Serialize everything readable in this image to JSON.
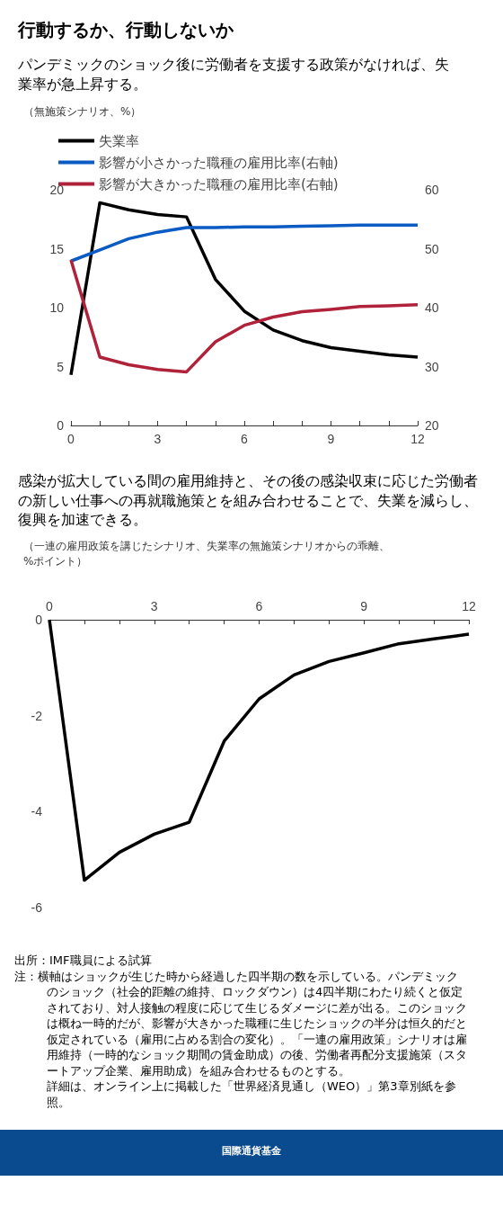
{
  "chart_data": [
    {
      "type": "line",
      "title": "行動するか、行動しないか",
      "subtitle": "パンデミックのショック後に労働者を支援する政策がなければ、失業率が急上昇する。",
      "ylabel": "（無施策シナリオ、%）",
      "x": [
        0,
        1,
        2,
        3,
        4,
        5,
        6,
        7,
        8,
        9,
        10,
        11,
        12
      ],
      "series": [
        {
          "name": "失業率",
          "color": "#000000",
          "values": [
            4.3,
            18.9,
            18.3,
            17.9,
            17.7,
            12.4,
            9.7,
            8.1,
            7.2,
            6.6,
            6.3,
            6.0,
            5.8
          ]
        },
        {
          "name": "影響が小さかった職種の雇用比率(右軸)",
          "color": "#0a5bc4",
          "axis": "y2",
          "values": [
            47.9,
            49.8,
            51.7,
            52.8,
            53.6,
            53.6,
            53.7,
            53.7,
            53.8,
            53.9,
            54.0,
            54.0,
            54.0
          ]
        },
        {
          "name": "影響が大きかった職種の雇用比率(右軸)",
          "color": "#b0213a",
          "axis": "y2",
          "values": [
            48.1,
            31.6,
            30.3,
            29.5,
            29.1,
            34.2,
            37.0,
            38.4,
            39.3,
            39.7,
            40.2,
            40.3,
            40.5
          ]
        }
      ],
      "xlim": [
        0,
        12
      ],
      "xticks": [
        0,
        {
          "value": 1,
          "label": null
        },
        {
          "value": 2,
          "label": null
        },
        3,
        {
          "value": 4,
          "label": null
        },
        {
          "value": 5,
          "label": null
        },
        6,
        {
          "value": 7,
          "label": null
        },
        {
          "value": 8,
          "label": null
        },
        9,
        {
          "value": 10,
          "label": null
        },
        {
          "value": 11,
          "label": null
        },
        12
      ],
      "ylim": [
        0,
        20
      ],
      "yticks": [
        0,
        5,
        10,
        15,
        20
      ],
      "y2lim": [
        20,
        60
      ],
      "y2ticks": [
        20,
        30,
        40,
        50,
        60
      ],
      "legend": "top left",
      "grid": false,
      "marker": "none",
      "line_style": "solid"
    },
    {
      "type": "line",
      "title": "感染が拡大している間の雇用維持と、その後の感染収束に応じた労働者の新しい仕事への再就職施策とを組み合わせることで、失業を減らし、復興を加速できる。",
      "ylabel": "（一連の雇用政策を講じたシナリオ、失業率の無施策シナリオからの乖離、\n%ポイント）",
      "x": [
        0,
        1,
        2,
        3,
        4,
        5,
        6,
        7,
        8,
        9,
        10,
        11,
        12
      ],
      "series": [
        {
          "color": "#000000",
          "values": [
            0,
            -5.43,
            -4.85,
            -4.47,
            -4.22,
            -2.53,
            -1.65,
            -1.15,
            -0.87,
            -0.69,
            -0.5,
            -0.4,
            -0.3
          ]
        }
      ],
      "xlim": [
        0,
        12
      ],
      "xticks": [
        0,
        {
          "value": 1,
          "label": null
        },
        {
          "value": 2,
          "label": null
        },
        3,
        {
          "value": 4,
          "label": null
        },
        {
          "value": 5,
          "label": null
        },
        6,
        {
          "value": 7,
          "label": null
        },
        {
          "value": 8,
          "label": null
        },
        9,
        {
          "value": 10,
          "label": null
        },
        {
          "value": 11,
          "label": null
        },
        12
      ],
      "ylim": [
        -6,
        0
      ],
      "yticks": [
        -6,
        -4,
        -2,
        0
      ],
      "legend": false,
      "grid": false,
      "marker": "none",
      "line_style": "solid",
      "annotations": [
        "出所：IMF職員による試算",
        "注：横軸はショックが生じた時から経過した四半期の数を示している。パンデミックのショック（社会的距離の維持、ロックダウン）は4四半期にわたり続くと仮定されており、対人接触の程度に応じて生じるダメージに差が出る。このショックは概ね一時的だが、影響が大きかった職種に生じたショックの半分は恒久的だと仮定されている（雇用に占める割合の変化）。「一連の雇用政策」シナリオは雇用維持（一時的なショック期間の賃金助成）の後、労働者再配分支援施策（スタートアップ企業、雇用助成）を組み合わせるものとする。",
        "詳細は、オンライン上に掲載した「世界経済見通し（WEO）」第3章別紙を参照。",
        "国際通貨基金"
      ]
    }
  ]
}
